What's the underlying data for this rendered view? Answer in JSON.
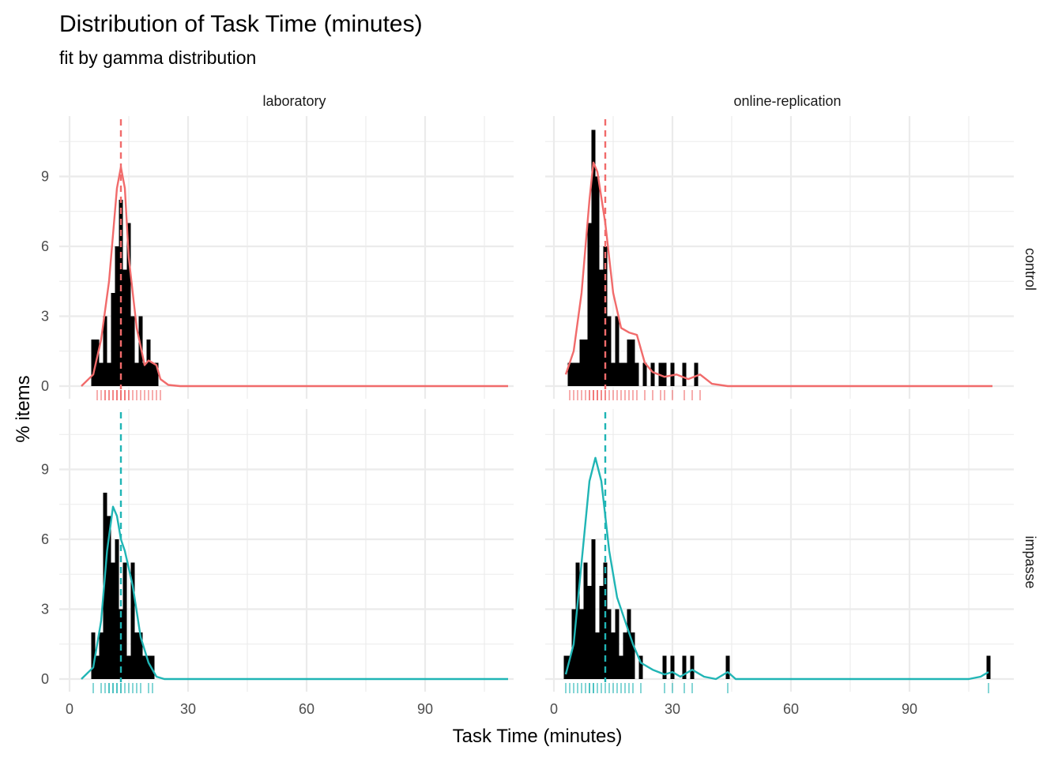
{
  "chart_data": {
    "type": "histogram-density-facets",
    "title": "Distribution of Task Time (minutes)",
    "subtitle": "fit by gamma distribution",
    "xlabel": "Task Time (minutes)",
    "ylabel": "% items",
    "xlim": [
      0,
      112
    ],
    "ylim": [
      0,
      11.5
    ],
    "x_ticks": [
      0,
      30,
      60,
      90
    ],
    "y_ticks": [
      0,
      3,
      6,
      9
    ],
    "grid": true,
    "col_facets": [
      "laboratory",
      "online-replication"
    ],
    "row_facets": [
      "control",
      "impasse"
    ],
    "colors": {
      "control": "#f16b6b",
      "impasse": "#20b5b5",
      "bars": "#000000"
    },
    "panels": [
      {
        "col": "laboratory",
        "row": "control",
        "mean": 13,
        "bins": [
          [
            6,
            2
          ],
          [
            7,
            2
          ],
          [
            8,
            1
          ],
          [
            9,
            3
          ],
          [
            10,
            1
          ],
          [
            11,
            4
          ],
          [
            12,
            6
          ],
          [
            13,
            8
          ],
          [
            14,
            5
          ],
          [
            15,
            7
          ],
          [
            16,
            3
          ],
          [
            17,
            1
          ],
          [
            18,
            3
          ],
          [
            19,
            1
          ],
          [
            20,
            2
          ],
          [
            21,
            1
          ],
          [
            22,
            1
          ]
        ],
        "density": [
          [
            3,
            0
          ],
          [
            6,
            0.5
          ],
          [
            8,
            2
          ],
          [
            10,
            4.5
          ],
          [
            12,
            8.5
          ],
          [
            13,
            9.4
          ],
          [
            14,
            8.5
          ],
          [
            15,
            5.5
          ],
          [
            17,
            2.5
          ],
          [
            19,
            0.9
          ],
          [
            20,
            1.1
          ],
          [
            22,
            0.9
          ],
          [
            23,
            0.3
          ],
          [
            25,
            0.05
          ],
          [
            28,
            0
          ],
          [
            50,
            0
          ],
          [
            80,
            0
          ],
          [
            111,
            0
          ]
        ],
        "rug": [
          7,
          8,
          9,
          9,
          10,
          10,
          11,
          11,
          12,
          12,
          12,
          13,
          13,
          13,
          13,
          14,
          14,
          14,
          15,
          15,
          16,
          17,
          18,
          19,
          20,
          21,
          22,
          23
        ]
      },
      {
        "col": "online-replication",
        "row": "control",
        "mean": 13,
        "bins": [
          [
            4,
            1
          ],
          [
            5,
            1
          ],
          [
            6,
            1
          ],
          [
            7,
            2
          ],
          [
            8,
            2
          ],
          [
            9,
            7
          ],
          [
            10,
            11
          ],
          [
            11,
            9
          ],
          [
            12,
            5
          ],
          [
            13,
            6
          ],
          [
            14,
            3
          ],
          [
            15,
            1
          ],
          [
            16,
            3
          ],
          [
            17,
            1
          ],
          [
            18,
            1
          ],
          [
            19,
            2
          ],
          [
            20,
            2
          ],
          [
            21,
            1
          ],
          [
            23,
            1
          ],
          [
            25,
            1
          ],
          [
            27,
            1
          ],
          [
            28,
            1
          ],
          [
            30,
            1
          ],
          [
            33,
            1
          ],
          [
            36,
            1
          ]
        ],
        "density": [
          [
            3,
            0.5
          ],
          [
            5,
            1.5
          ],
          [
            7,
            4
          ],
          [
            9,
            8
          ],
          [
            10,
            9.6
          ],
          [
            11,
            9.2
          ],
          [
            13,
            7
          ],
          [
            15,
            4
          ],
          [
            17,
            2.5
          ],
          [
            19,
            2.3
          ],
          [
            21,
            2.2
          ],
          [
            23,
            1
          ],
          [
            25,
            0.6
          ],
          [
            28,
            0.4
          ],
          [
            31,
            0.5
          ],
          [
            34,
            0.3
          ],
          [
            37,
            0.5
          ],
          [
            40,
            0.1
          ],
          [
            44,
            0
          ],
          [
            70,
            0
          ],
          [
            111,
            0
          ]
        ],
        "rug": [
          4,
          5,
          6,
          7,
          8,
          9,
          9,
          10,
          10,
          10,
          11,
          11,
          11,
          12,
          12,
          13,
          13,
          14,
          15,
          16,
          17,
          18,
          19,
          20,
          21,
          23,
          25,
          27,
          28,
          30,
          33,
          35,
          37
        ]
      },
      {
        "col": "laboratory",
        "row": "impasse",
        "mean": 13,
        "bins": [
          [
            6,
            2
          ],
          [
            7,
            1
          ],
          [
            8,
            2
          ],
          [
            9,
            8
          ],
          [
            10,
            7
          ],
          [
            11,
            5
          ],
          [
            12,
            6
          ],
          [
            13,
            3
          ],
          [
            14,
            5
          ],
          [
            15,
            1
          ],
          [
            16,
            5
          ],
          [
            17,
            2
          ],
          [
            18,
            2
          ],
          [
            19,
            1
          ],
          [
            20,
            1
          ],
          [
            21,
            1
          ]
        ],
        "density": [
          [
            3,
            0
          ],
          [
            6,
            0.5
          ],
          [
            8,
            2.5
          ],
          [
            9.5,
            5.5
          ],
          [
            11,
            7.4
          ],
          [
            12,
            7
          ],
          [
            13,
            6
          ],
          [
            14,
            5.5
          ],
          [
            16,
            4
          ],
          [
            18,
            1.8
          ],
          [
            20,
            0.7
          ],
          [
            22,
            0.1
          ],
          [
            24,
            0
          ],
          [
            60,
            0
          ],
          [
            111,
            0
          ]
        ],
        "rug": [
          6,
          8,
          9,
          10,
          10,
          11,
          11,
          12,
          12,
          13,
          13,
          14,
          15,
          16,
          17,
          18,
          20,
          21
        ]
      },
      {
        "col": "online-replication",
        "row": "impasse",
        "mean": 13,
        "bins": [
          [
            3,
            1
          ],
          [
            4,
            1
          ],
          [
            5,
            3
          ],
          [
            6,
            5
          ],
          [
            7,
            3
          ],
          [
            8,
            5
          ],
          [
            9,
            4
          ],
          [
            10,
            6
          ],
          [
            11,
            2
          ],
          [
            12,
            4
          ],
          [
            13,
            5
          ],
          [
            14,
            3
          ],
          [
            15,
            2
          ],
          [
            16,
            3
          ],
          [
            17,
            1
          ],
          [
            18,
            2
          ],
          [
            19,
            3
          ],
          [
            20,
            2
          ],
          [
            22,
            1
          ],
          [
            28,
            1
          ],
          [
            30,
            1
          ],
          [
            33,
            1
          ],
          [
            35,
            1
          ],
          [
            44,
            1
          ],
          [
            110,
            1
          ]
        ],
        "density": [
          [
            3,
            0.2
          ],
          [
            5,
            1.5
          ],
          [
            7,
            5
          ],
          [
            9,
            8.5
          ],
          [
            10.5,
            9.5
          ],
          [
            12,
            8.5
          ],
          [
            14,
            5.5
          ],
          [
            16,
            3.5
          ],
          [
            18,
            2.5
          ],
          [
            20,
            1.5
          ],
          [
            22,
            0.7
          ],
          [
            25,
            0.4
          ],
          [
            28,
            0.2
          ],
          [
            30,
            0.3
          ],
          [
            32,
            0.1
          ],
          [
            35,
            0.4
          ],
          [
            38,
            0.1
          ],
          [
            41,
            0
          ],
          [
            44,
            0.3
          ],
          [
            46,
            0
          ],
          [
            70,
            0
          ],
          [
            105,
            0
          ],
          [
            108,
            0.1
          ],
          [
            110,
            0.3
          ]
        ],
        "rug": [
          3,
          4,
          5,
          6,
          7,
          8,
          9,
          9,
          10,
          10,
          11,
          12,
          13,
          14,
          15,
          16,
          17,
          18,
          19,
          20,
          22,
          28,
          30,
          33,
          35,
          44,
          110
        ]
      }
    ]
  }
}
